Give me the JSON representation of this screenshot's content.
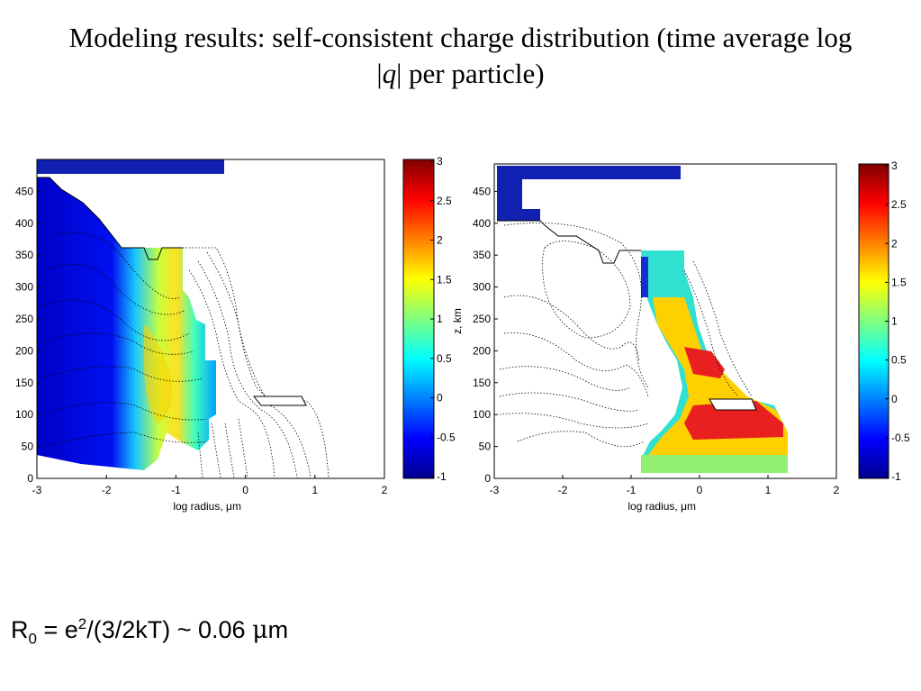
{
  "slide": {
    "title_line1": "Modeling results: self-consistent charge distribution (time average log",
    "title_bar_open": "|",
    "title_q": "q",
    "title_line2_rest": "| per particle)"
  },
  "formula": {
    "r": "R",
    "r_sub": "0",
    "eq": " = e",
    "e_sup": "2",
    "rest": "/(3/2kT) ~ 0.06 ",
    "mu": "μ",
    "unit": "m"
  },
  "chart_data": [
    {
      "type": "heatmap",
      "xlabel": "log radius, μm",
      "ylabel": "",
      "xlim": [
        -3,
        2
      ],
      "ylim": [
        0,
        500
      ],
      "xticks": [
        "-3",
        "-2",
        "-1",
        "0",
        "1",
        "2"
      ],
      "yticks": [
        "0",
        "50",
        "100",
        "150",
        "200",
        "250",
        "300",
        "350",
        "400",
        "450"
      ],
      "colorbar": {
        "range": [
          -1,
          3
        ],
        "ticks": [
          "3",
          "2.5",
          "2",
          "1.5",
          "1",
          "0.5",
          "0",
          "-0.5",
          "-1"
        ],
        "colormap": "jet"
      },
      "grid": false
    },
    {
      "type": "heatmap",
      "xlabel": "log radius, μm",
      "ylabel": "z, km",
      "xlim": [
        -3,
        2
      ],
      "ylim": [
        0,
        500
      ],
      "xticks": [
        "-3",
        "-2",
        "-1",
        "0",
        "1",
        "2"
      ],
      "yticks": [
        "0",
        "50",
        "100",
        "150",
        "200",
        "250",
        "300",
        "350",
        "400",
        "450"
      ],
      "colorbar": {
        "range": [
          -1,
          3
        ],
        "ticks": [
          "3",
          "2.5",
          "2",
          "1.5",
          "1",
          "0.5",
          "0",
          "-0.5",
          "-1"
        ],
        "colormap": "jet"
      },
      "grid": false
    }
  ]
}
